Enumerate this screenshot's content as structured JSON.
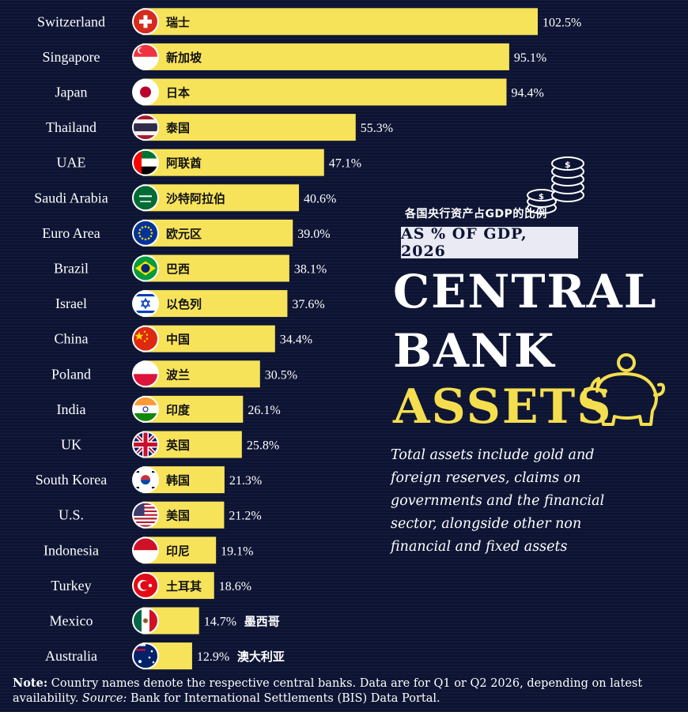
{
  "chart_data": {
    "type": "bar",
    "orientation": "horizontal",
    "subtitle": "AS % OF GDP, 2026",
    "title_lines": [
      "CENTRAL",
      "BANK",
      "ASSETS"
    ],
    "chinese_title": "各国央行资产占GDP的比例",
    "categories": [
      "Switzerland",
      "Singapore",
      "Japan",
      "Thailand",
      "UAE",
      "Saudi Arabia",
      "Euro Area",
      "Brazil",
      "Israel",
      "China",
      "Poland",
      "India",
      "UK",
      "South Korea",
      "U.S.",
      "Indonesia",
      "Turkey",
      "Mexico",
      "Australia"
    ],
    "chinese_names": [
      "瑞士",
      "新加坡",
      "日本",
      "泰国",
      "阿联酋",
      "沙特阿拉伯",
      "欧元区",
      "巴西",
      "以色列",
      "中国",
      "波兰",
      "印度",
      "英国",
      "韩国",
      "美国",
      "印尼",
      "土耳其",
      "墨西哥",
      "澳大利亚"
    ],
    "values": [
      102.5,
      95.1,
      94.4,
      55.3,
      47.1,
      40.6,
      39.0,
      38.1,
      37.6,
      34.4,
      30.5,
      26.1,
      25.8,
      21.3,
      21.2,
      19.1,
      18.6,
      14.7,
      12.9
    ],
    "value_labels": [
      "102.5%",
      "95.1%",
      "94.4%",
      "55.3%",
      "47.1%",
      "40.6%",
      "39.0%",
      "38.1%",
      "37.6%",
      "34.4%",
      "30.5%",
      "26.1%",
      "25.8%",
      "21.3%",
      "21.2%",
      "19.1%",
      "18.6%",
      "14.7%",
      "12.9%"
    ],
    "flags": [
      "switzerland-flag",
      "singapore-flag",
      "japan-flag",
      "thailand-flag",
      "uae-flag",
      "saudi-arabia-flag",
      "euro-area-flag",
      "brazil-flag",
      "israel-flag",
      "china-flag",
      "poland-flag",
      "india-flag",
      "uk-flag",
      "south-korea-flag",
      "us-flag",
      "indonesia-flag",
      "turkey-flag",
      "mexico-flag",
      "australia-flag"
    ],
    "bar_color": "#f6e35a",
    "grid": false,
    "legend": "none"
  },
  "description": "Total assets include gold and foreign reserves, claims on governments and the financial sector, alongside other non financial and fixed assets",
  "footer": {
    "note_label": "Note:",
    "note_text": " Country names denote the respective central banks. Data are for Q1 or Q2 2026, depending on latest availability. ",
    "source_label": "Source:",
    "source_text": " Bank for International Settlements (BIS) Data Portal."
  },
  "colors": {
    "background": "#0d1433",
    "accent_yellow": "#f4de4f",
    "bar": "#f6e35a"
  }
}
